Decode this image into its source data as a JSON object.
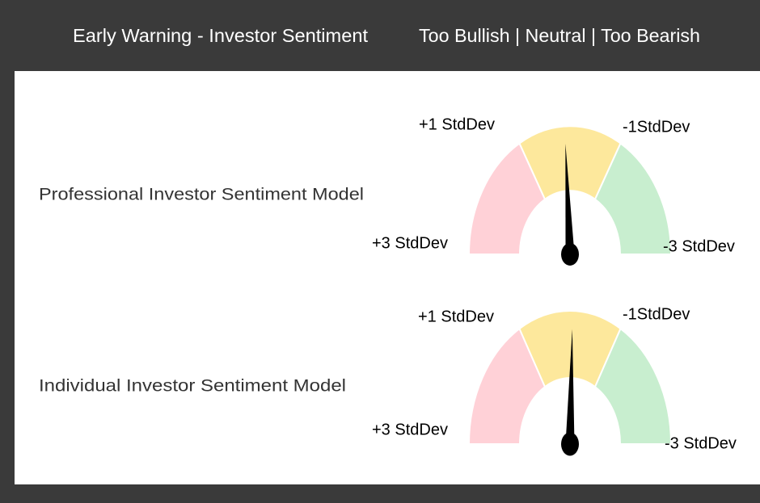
{
  "header": {
    "title": "Early Warning - Investor Sentiment",
    "legend": "Too Bullish | Neutral | Too Bearish"
  },
  "gauges": [
    {
      "label": "Professional Investor Sentiment Model",
      "needle": 0.1,
      "range": [
        3,
        -3
      ],
      "ticks": [
        {
          "value": 3,
          "label": "+3 StdDev"
        },
        {
          "value": 1,
          "label": "+1 StdDev"
        },
        {
          "value": -1,
          "label": "-1StdDev"
        },
        {
          "value": -3,
          "label": "-3 StdDev"
        }
      ],
      "colors": [
        "#ffd1d7",
        "#fde89c",
        "#c8eecf"
      ]
    },
    {
      "label": "Individual Investor Sentiment Model",
      "needle": -0.05,
      "range": [
        3,
        -3
      ],
      "ticks": [
        {
          "value": 3,
          "label": "+3 StdDev"
        },
        {
          "value": 1,
          "label": "+1 StdDev"
        },
        {
          "value": -1,
          "label": "-1StdDev"
        },
        {
          "value": -3,
          "label": "-3 StdDev"
        }
      ],
      "colors": [
        "#ffd1d7",
        "#fde89c",
        "#c8eecf"
      ]
    }
  ]
}
